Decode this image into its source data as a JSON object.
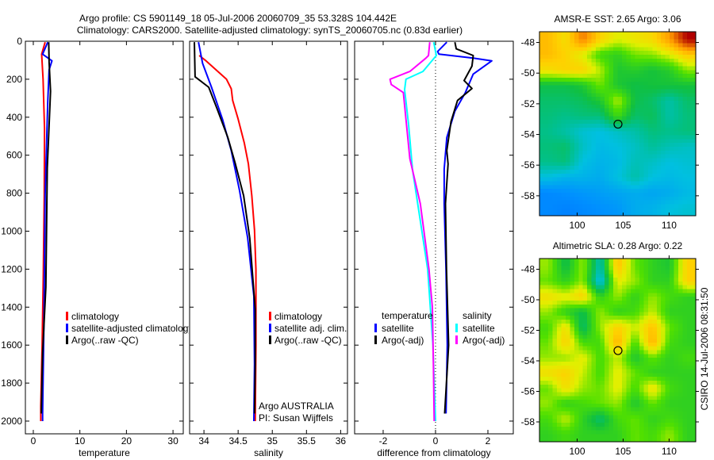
{
  "title_lines": [
    "Argo profile: CS 5901149_18 05-Jul-2006 20060709_35 53.328S 104.442E",
    "Climatology: CARS2000. Satellite-adjusted climatology: synTS_20060705.nc (0.83d earlier)"
  ],
  "footer_stamp": "CSIRO 14-Jul-2006 08:31:50",
  "chart_data": [
    {
      "id": "temperature",
      "type": "line",
      "xlabel": "temperature",
      "ylabel": "",
      "xlim": [
        -1.7,
        32.2
      ],
      "ylim": [
        2067,
        0
      ],
      "xticks": [
        0,
        10,
        20,
        30
      ],
      "yticks": [
        0,
        200,
        400,
        600,
        800,
        1000,
        1200,
        1400,
        1600,
        1800,
        2000
      ],
      "series": [
        {
          "name": "climatology",
          "color": "#ff0000",
          "depth": [
            5,
            68,
            200,
            458,
            800,
            1224,
            1600,
            1920,
            2000
          ],
          "value": [
            2.55,
            1.8,
            2.1,
            2.4,
            2.35,
            2.15,
            1.9,
            1.6,
            1.6
          ]
        },
        {
          "name": "satellite-adjusted climatology",
          "color": "#0000ff",
          "depth": [
            5,
            68,
            103,
            150,
            318,
            806,
            1502,
            1962,
            2000
          ],
          "value": [
            3.1,
            2.0,
            4.0,
            3.4,
            3.1,
            2.55,
            2.27,
            2.0,
            2.0
          ]
        },
        {
          "name": "Argo(..raw -QC)",
          "color": "#000000",
          "depth": [
            5,
            110,
            263,
            667,
            1294,
            1642,
            1960
          ],
          "value": [
            3.3,
            3.4,
            3.7,
            3.0,
            2.7,
            2.0,
            1.7
          ]
        }
      ],
      "legend": [
        {
          "label": "climatology",
          "color": "#ff0000"
        },
        {
          "label": "satellite-adjusted climatology",
          "color": "#0000ff"
        },
        {
          "label": "Argo(..raw -QC)",
          "color": "#000000"
        }
      ]
    },
    {
      "id": "salinity",
      "type": "line",
      "xlabel": "salinity",
      "ylabel": "",
      "xlim": [
        33.79,
        36.1
      ],
      "ylim": [
        2067,
        0
      ],
      "xticks": [
        34,
        34.5,
        35,
        35.5,
        36
      ],
      "yticks": [
        0,
        200,
        400,
        600,
        800,
        1000,
        1200,
        1400,
        1600,
        1800,
        2000
      ],
      "series": [
        {
          "name": "climatology",
          "color": "#ff0000",
          "depth": [
            75,
            103,
            200,
            250,
            312,
            410,
            535,
            646,
            813,
            994,
            1203,
            1600,
            2000
          ],
          "value": [
            33.93,
            34.03,
            34.33,
            34.4,
            34.42,
            34.5,
            34.59,
            34.65,
            34.7,
            34.74,
            34.76,
            34.76,
            34.75
          ]
        },
        {
          "name": "satellite adj. clim.",
          "color": "#0000ff",
          "depth": [
            5,
            117,
            242,
            410,
            576,
            785,
            1036,
            1342,
            1700,
            2000
          ],
          "value": [
            33.92,
            33.98,
            34.11,
            34.27,
            34.4,
            34.52,
            34.64,
            34.73,
            34.74,
            34.73
          ]
        },
        {
          "name": "Argo(..raw -QC)",
          "color": "#000000",
          "depth": [
            5,
            187,
            242,
            354,
            507,
            646,
            813,
            1036,
            1412,
            1700,
            1960
          ],
          "value": [
            33.86,
            33.87,
            34.07,
            34.19,
            34.35,
            34.46,
            34.58,
            34.67,
            34.75,
            34.75,
            34.74
          ]
        }
      ],
      "legend": [
        {
          "label": "climatology",
          "color": "#ff0000"
        },
        {
          "label": "satellite adj. clim.",
          "color": "#0000ff"
        },
        {
          "label": "Argo(..raw -QC)",
          "color": "#000000"
        }
      ],
      "annotations": [
        "Argo AUSTRALIA",
        "PI: Susan Wijffels"
      ]
    },
    {
      "id": "difference",
      "type": "line",
      "xlabel": "difference from climatology",
      "ylabel": "",
      "xlim": [
        -3.09,
        2.97
      ],
      "ylim": [
        2067,
        0
      ],
      "xticks": [
        -2,
        0,
        2
      ],
      "yticks": [
        0,
        200,
        400,
        600,
        800,
        1000,
        1200,
        1400,
        1600,
        1800,
        2000
      ],
      "zero_line": true,
      "series": [
        {
          "name": "temperature satellite",
          "color": "#0000ff",
          "depth": [
            5,
            54,
            68,
            89,
            103,
            173,
            270,
            368,
            507,
            673,
            855,
            1200,
            1600,
            1960
          ],
          "value": [
            0.43,
            0.08,
            0.13,
            1.44,
            2.15,
            1.44,
            1.14,
            0.74,
            0.43,
            0.33,
            0.33,
            0.4,
            0.45,
            0.4
          ]
        },
        {
          "name": "temperature Argo(-adj)",
          "color": "#000000",
          "depth": [
            5,
            40,
            75,
            131,
            207,
            249,
            312,
            423,
            576,
            646,
            855,
            1200,
            1600,
            1960
          ],
          "value": [
            0.74,
            0.79,
            1.44,
            1.39,
            1.09,
            1.39,
            0.84,
            0.59,
            0.43,
            0.48,
            0.38,
            0.42,
            0.5,
            0.35
          ]
        },
        {
          "name": "salinity satellite",
          "color": "#00ffff",
          "depth": [
            5,
            75,
            159,
            200,
            255,
            437,
            673,
            855,
            1200,
            1600,
            2000
          ],
          "value": [
            -0.07,
            0.03,
            -0.48,
            -1.13,
            -1.18,
            -1.03,
            -0.88,
            -0.68,
            -0.3,
            -0.1,
            0.0
          ]
        },
        {
          "name": "salinity Argo(-adj)",
          "color": "#ff00ff",
          "depth": [
            5,
            75,
            89,
            159,
            200,
            228,
            270,
            410,
            618,
            855,
            1200,
            1400,
            1700,
            2000
          ],
          "value": [
            -0.22,
            -0.27,
            -0.37,
            -0.98,
            -1.74,
            -1.69,
            -1.23,
            -1.13,
            -0.98,
            -0.58,
            -0.25,
            -0.12,
            -0.08,
            -0.05
          ]
        }
      ],
      "legend_columns": [
        {
          "heading": "temperature",
          "entries": [
            {
              "label": "satellite",
              "color": "#0000ff"
            },
            {
              "label": "Argo(-adj)",
              "color": "#000000"
            }
          ]
        },
        {
          "heading": "salinity",
          "entries": [
            {
              "label": "satellite",
              "color": "#00ffff"
            },
            {
              "label": "Argo(-adj)",
              "color": "#ff00ff"
            }
          ]
        }
      ]
    },
    {
      "id": "sst_map",
      "type": "heatmap",
      "title": "AMSR-E SST: 2.65 Argo: 3.06",
      "xlim": [
        95.9,
        112.9
      ],
      "ylim": [
        -59.3,
        -47.3
      ],
      "xticks": [
        100,
        105,
        110
      ],
      "yticks": [
        -48,
        -50,
        -52,
        -54,
        -56,
        -58
      ],
      "clim": [
        0.5,
        7.5
      ],
      "marker": {
        "lon": 104.442,
        "lat": -53.328
      },
      "values": [
        [
          5.8,
          5.3,
          6.5,
          5.5,
          5.0,
          5.2,
          5.4,
          6.2,
          7.5
        ],
        [
          5.8,
          5.5,
          5.0,
          4.2,
          4.0,
          4.5,
          4.6,
          5.0,
          5.6
        ],
        [
          5.3,
          5.5,
          5.5,
          4.8,
          3.8,
          3.9,
          3.7,
          3.9,
          4.6
        ],
        [
          3.6,
          3.6,
          3.8,
          4.5,
          3.8,
          3.6,
          3.7,
          3.7,
          3.7
        ],
        [
          3.4,
          3.4,
          3.5,
          3.8,
          4.8,
          3.6,
          3.4,
          3.0,
          3.4
        ],
        [
          3.3,
          3.2,
          3.3,
          3.3,
          4.2,
          3.4,
          3.5,
          3.0,
          3.3
        ],
        [
          3.2,
          3.0,
          2.7,
          2.6,
          2.8,
          3.0,
          3.3,
          3.2,
          3.3
        ],
        [
          3.3,
          3.4,
          2.8,
          2.5,
          2.6,
          2.8,
          3.1,
          2.9,
          2.8
        ],
        [
          3.2,
          3.3,
          2.6,
          2.4,
          2.5,
          2.9,
          2.8,
          2.6,
          2.7
        ],
        [
          2.6,
          2.4,
          2.4,
          2.3,
          2.6,
          3.0,
          2.6,
          2.5,
          2.6
        ],
        [
          1.8,
          1.9,
          2.0,
          2.1,
          2.2,
          2.3,
          2.2,
          2.3,
          2.5
        ],
        [
          1.8,
          1.7,
          1.8,
          1.9,
          2.0,
          2.3,
          2.4,
          2.6,
          2.7
        ]
      ]
    },
    {
      "id": "sla_map",
      "type": "heatmap",
      "title": "Altimetric SLA: 0.28 Argo: 0.22",
      "xlim": [
        95.9,
        112.9
      ],
      "ylim": [
        -59.3,
        -47.3
      ],
      "xticks": [
        100,
        105,
        110
      ],
      "yticks": [
        -48,
        -50,
        -52,
        -54,
        -56,
        -58
      ],
      "clim": [
        -0.8,
        0.8
      ],
      "marker": {
        "lon": 104.442,
        "lat": -53.328
      },
      "values": [
        [
          0.15,
          -0.1,
          0.15,
          -0.25,
          0.4,
          0.1,
          0.0,
          -0.05,
          0.35
        ],
        [
          0.1,
          0.0,
          0.15,
          -0.35,
          0.25,
          0.15,
          0.0,
          0.0,
          0.35
        ],
        [
          0.3,
          0.25,
          0.35,
          0.0,
          0.15,
          0.0,
          0.15,
          0.05,
          0.0
        ],
        [
          0.15,
          0.0,
          -0.1,
          0.15,
          0.0,
          0.05,
          0.2,
          0.0,
          0.0
        ],
        [
          0.05,
          0.3,
          -0.15,
          0.15,
          0.35,
          0.2,
          0.4,
          0.1,
          0.0
        ],
        [
          0.1,
          0.35,
          0.05,
          0.05,
          0.45,
          0.05,
          0.45,
          0.05,
          0.0
        ],
        [
          0.15,
          0.15,
          0.25,
          0.05,
          0.2,
          -0.05,
          0.1,
          0.0,
          0.05
        ],
        [
          0.3,
          0.35,
          0.2,
          0.05,
          0.25,
          0.1,
          0.0,
          0.0,
          0.0
        ],
        [
          0.1,
          0.3,
          0.15,
          0.1,
          0.25,
          0.05,
          0.3,
          0.05,
          0.0
        ],
        [
          0.15,
          0.0,
          0.05,
          0.1,
          0.15,
          -0.05,
          0.1,
          0.0,
          0.0
        ],
        [
          0.05,
          0.2,
          0.0,
          -0.15,
          0.05,
          0.1,
          0.0,
          0.05,
          0.0
        ],
        [
          0.0,
          0.05,
          0.0,
          0.0,
          0.0,
          0.1,
          0.05,
          0.15,
          0.0
        ]
      ]
    }
  ]
}
